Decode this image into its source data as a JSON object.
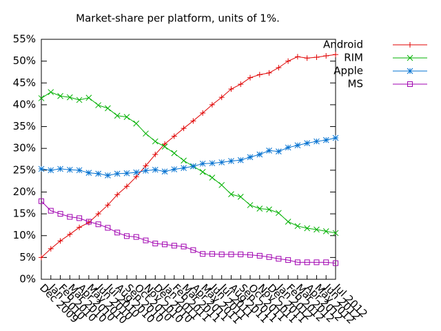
{
  "chart_data": {
    "type": "line",
    "title": "Market-share per platform, units of 1%.",
    "categories": [
      "Dec 2009",
      "Jan 2010",
      "Feb 2010",
      "Mar 2010",
      "Apr 2010",
      "May 2010",
      "Jun 2010",
      "Jul 2010",
      "Aug 2010",
      "Sep 2010",
      "Oct 2010",
      "Nov 2010",
      "Dec 2010",
      "Jan 2011",
      "Feb 2011",
      "Mar 2011",
      "Apr 2011",
      "May 2011",
      "Jun 2011",
      "Jul 2011",
      "Aug 2011",
      "Sep 2011",
      "Oct 2011",
      "Nov 2011",
      "Dec 2011",
      "Jan 2012",
      "Feb 2012",
      "Mar 2012",
      "Apr 2012",
      "May 2012",
      "Jun 2012",
      "Jul 2012"
    ],
    "series": [
      {
        "name": "Android",
        "color": "#e00000",
        "marker": "plus",
        "values": [
          5,
          7,
          8.8,
          10.3,
          11.9,
          13,
          15,
          17,
          19.4,
          21.3,
          23.5,
          26,
          28.6,
          31,
          32.8,
          34.6,
          36.3,
          38.1,
          40,
          41.7,
          43.6,
          44.7,
          46.2,
          46.9,
          47.3,
          48.5,
          50,
          51,
          50.7,
          50.9,
          51.2,
          51.5
        ]
      },
      {
        "name": "RIM",
        "color": "#00b000",
        "marker": "cross",
        "values": [
          41.5,
          42.9,
          42,
          41.7,
          41.1,
          41.6,
          39.9,
          39.2,
          37.5,
          37.2,
          35.7,
          33.4,
          31.6,
          30.4,
          28.9,
          27.2,
          25.9,
          24.6,
          23.3,
          21.6,
          19.5,
          18.9,
          17,
          16.2,
          16,
          15.2,
          13.2,
          12.2,
          11.7,
          11.4,
          11,
          10.6
        ]
      },
      {
        "name": "Apple",
        "color": "#0070d0",
        "marker": "star",
        "values": [
          25.3,
          25,
          25.3,
          25.1,
          25,
          24.4,
          24.2,
          23.8,
          24.2,
          24.3,
          24.5,
          24.9,
          25.1,
          24.7,
          25.2,
          25.5,
          25.9,
          26.5,
          26.6,
          26.8,
          27.1,
          27.3,
          28,
          28.6,
          29.5,
          29.3,
          30.2,
          30.7,
          31.2,
          31.6,
          31.9,
          32.4
        ]
      },
      {
        "name": "MS",
        "color": "#a000b0",
        "marker": "square",
        "values": [
          17.9,
          15.7,
          15,
          14.3,
          14,
          13.2,
          12.6,
          11.8,
          10.7,
          9.9,
          9.7,
          8.9,
          8.2,
          8,
          7.7,
          7.5,
          6.7,
          5.8,
          5.8,
          5.7,
          5.7,
          5.7,
          5.6,
          5.4,
          5.1,
          4.7,
          4.4,
          3.9,
          3.9,
          3.9,
          3.9,
          3.7
        ]
      }
    ],
    "ylim": [
      0,
      55
    ],
    "yticks": [
      {
        "value": 0,
        "label": "0%"
      },
      {
        "value": 5,
        "label": "5%"
      },
      {
        "value": 10,
        "label": "10%"
      },
      {
        "value": 15,
        "label": "15%"
      },
      {
        "value": 20,
        "label": "20%"
      },
      {
        "value": 25,
        "label": "25%"
      },
      {
        "value": 30,
        "label": "30%"
      },
      {
        "value": 35,
        "label": "35%"
      },
      {
        "value": 40,
        "label": "40%"
      },
      {
        "value": 45,
        "label": "45%"
      },
      {
        "value": 50,
        "label": "50%"
      },
      {
        "value": 55,
        "label": "55%"
      }
    ],
    "legend": "outside-right-top"
  }
}
